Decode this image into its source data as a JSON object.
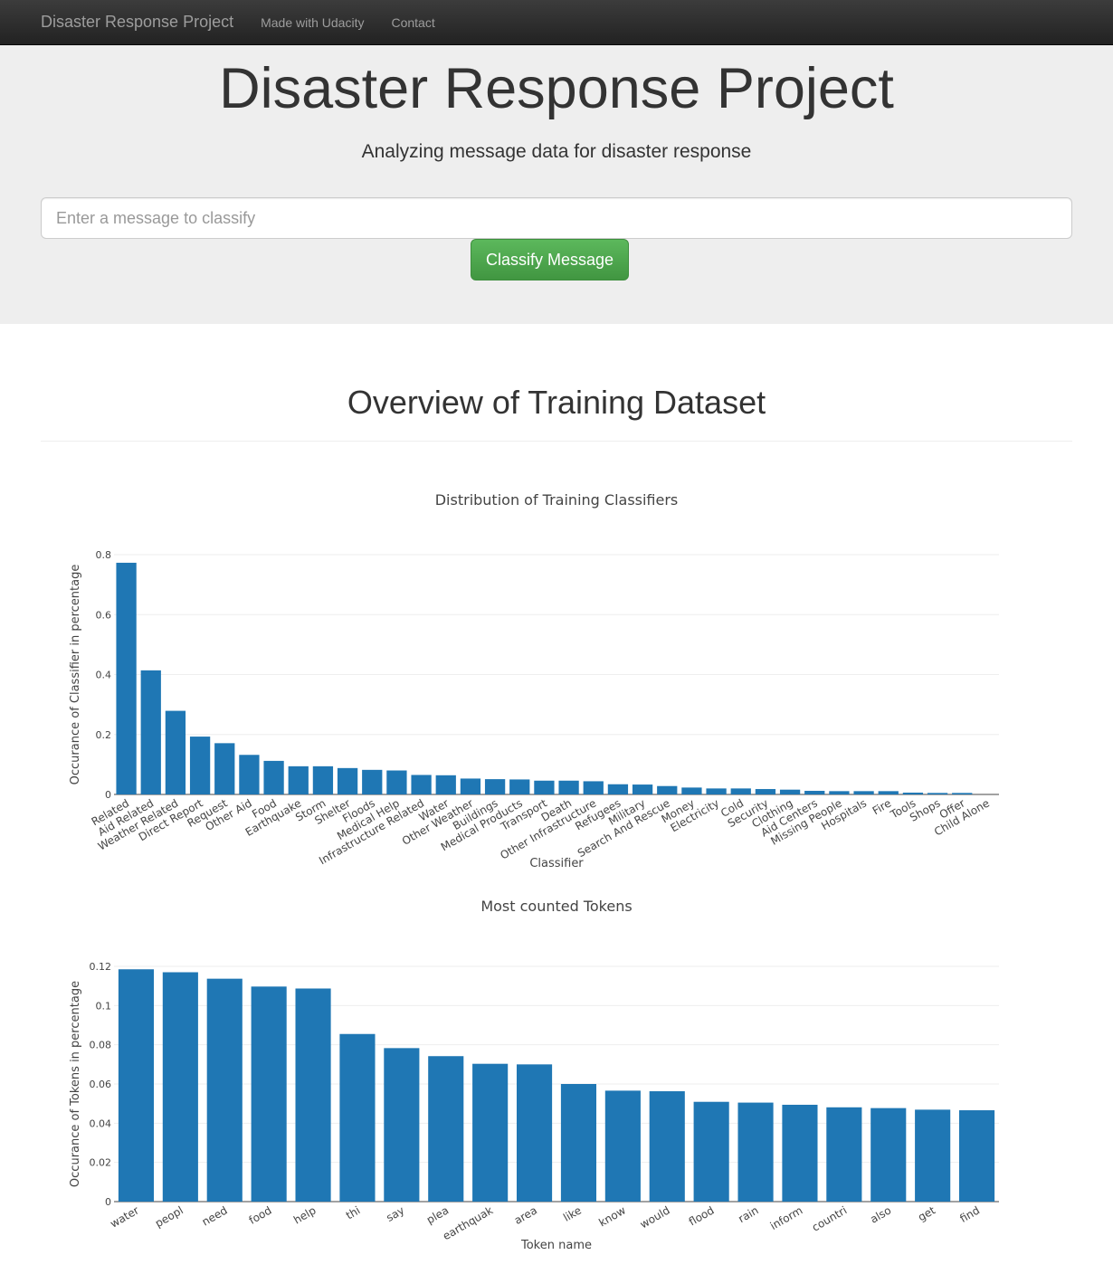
{
  "navbar": {
    "brand": "Disaster Response Project",
    "links": [
      "Made with Udacity",
      "Contact"
    ]
  },
  "jumbotron": {
    "title": "Disaster Response Project",
    "subtitle": "Analyzing message data for disaster response",
    "input_placeholder": "Enter a message to classify",
    "button_label": "Classify Message"
  },
  "overview": {
    "title": "Overview of Training Dataset"
  },
  "colors": {
    "bar": "#1f77b4",
    "button": "#5cb85c"
  },
  "chart_data": [
    {
      "type": "bar",
      "title": "Distribution of Training Classifiers",
      "xlabel": "Classifier",
      "ylabel": "Occurance of Classifier in percentage",
      "ylim": [
        0,
        0.8
      ],
      "yticks": [
        0,
        0.2,
        0.4,
        0.6,
        0.8
      ],
      "ytick_labels": [
        "0",
        "0.2",
        "0.4",
        "0.6",
        "0.8"
      ],
      "grid": true,
      "categories": [
        "Related",
        "Aid Related",
        "Weather Related",
        "Direct Report",
        "Request",
        "Other Aid",
        "Food",
        "Earthquake",
        "Storm",
        "Shelter",
        "Floods",
        "Medical Help",
        "Infrastructure Related",
        "Water",
        "Other Weather",
        "Buildings",
        "Medical Products",
        "Transport",
        "Death",
        "Other Infrastructure",
        "Refugees",
        "Military",
        "Search And Rescue",
        "Money",
        "Electricity",
        "Cold",
        "Security",
        "Clothing",
        "Aid Centers",
        "Missing People",
        "Hospitals",
        "Fire",
        "Tools",
        "Shops",
        "Offer",
        "Child Alone"
      ],
      "values": [
        0.773,
        0.414,
        0.279,
        0.193,
        0.171,
        0.132,
        0.112,
        0.094,
        0.094,
        0.088,
        0.082,
        0.08,
        0.065,
        0.064,
        0.053,
        0.051,
        0.05,
        0.046,
        0.046,
        0.044,
        0.034,
        0.033,
        0.028,
        0.023,
        0.02,
        0.02,
        0.018,
        0.016,
        0.012,
        0.011,
        0.011,
        0.011,
        0.006,
        0.005,
        0.005,
        0.0
      ]
    },
    {
      "type": "bar",
      "title": "Most counted Tokens",
      "xlabel": "Token name",
      "ylabel": "Occurance of Tokens in percentage",
      "ylim": [
        0,
        0.12
      ],
      "yticks": [
        0,
        0.02,
        0.04,
        0.06,
        0.08,
        0.1,
        0.12
      ],
      "ytick_labels": [
        "0",
        "0.02",
        "0.04",
        "0.06",
        "0.08",
        "0.1",
        "0.12"
      ],
      "grid": true,
      "categories": [
        "water",
        "peopl",
        "need",
        "food",
        "help",
        "thi",
        "say",
        "plea",
        "earthquak",
        "area",
        "like",
        "know",
        "would",
        "flood",
        "rain",
        "inform",
        "countri",
        "also",
        "get",
        "find"
      ],
      "values": [
        0.1185,
        0.117,
        0.1137,
        0.1097,
        0.1087,
        0.0855,
        0.0783,
        0.0742,
        0.0703,
        0.07,
        0.06,
        0.0566,
        0.0563,
        0.0509,
        0.0505,
        0.0494,
        0.0481,
        0.0477,
        0.0469,
        0.0466
      ]
    }
  ]
}
